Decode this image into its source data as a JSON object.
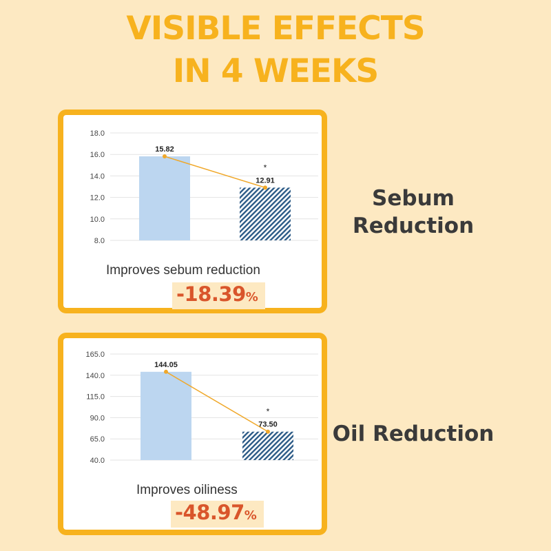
{
  "title": {
    "line1": "VISIBLE EFFECTS",
    "line2": "IN 4 WEEKS"
  },
  "panels": [
    {
      "label_line1": "Sebum",
      "label_line2": "Reduction",
      "caption": "Improves sebum reduction",
      "percent": "-18.39",
      "percent_unit": "%"
    },
    {
      "label_line1": "Oil Reduction",
      "caption": "Improves oiliness",
      "percent": "-48.97",
      "percent_unit": "%"
    }
  ],
  "colors": {
    "accent": "#f7b21e",
    "bar_before": "#bcd6f0",
    "bar_after_hatch": "#2b5a86",
    "line": "#f0a82a",
    "percent": "#d9552b",
    "background": "#fde9c2"
  },
  "chart_data": [
    {
      "type": "bar",
      "categories": [
        "",
        ""
      ],
      "values": [
        15.82,
        12.91
      ],
      "value_labels": [
        "15.82",
        "12.91"
      ],
      "significance_marker": "*",
      "ylim": [
        8.0,
        18.0
      ],
      "yticks": [
        "8.0",
        "10.0",
        "12.0",
        "14.0",
        "16.0",
        "18.0"
      ],
      "grid": true,
      "connector_line": true
    },
    {
      "type": "bar",
      "categories": [
        "",
        ""
      ],
      "values": [
        144.05,
        73.5
      ],
      "value_labels": [
        "144.05",
        "73.50"
      ],
      "significance_marker": "*",
      "ylim": [
        40.0,
        165.0
      ],
      "yticks": [
        "40.0",
        "65.0",
        "90.0",
        "115.0",
        "140.0",
        "165.0"
      ],
      "grid": true,
      "connector_line": true
    }
  ]
}
